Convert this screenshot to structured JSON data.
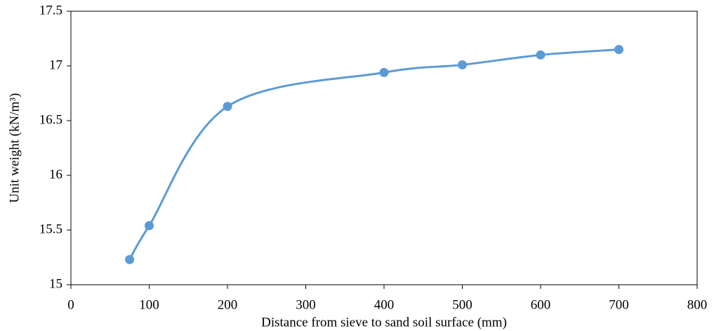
{
  "chart_data": {
    "type": "line",
    "x_label": "Distance from sieve to sand soil surface (mm)",
    "y_label": "Unit weight (kN/m³)",
    "x": [
      75,
      100,
      200,
      400,
      500,
      600,
      700
    ],
    "series": [
      {
        "color": "#5b9bd5",
        "values": [
          15.23,
          15.54,
          16.63,
          16.94,
          17.01,
          17.1,
          17.15
        ]
      }
    ],
    "xlim": [
      0,
      800
    ],
    "xticks": [
      0,
      100,
      200,
      300,
      400,
      500,
      600,
      700,
      800
    ],
    "ylim": [
      15,
      17.5
    ],
    "yticks": [
      15,
      15.5,
      16,
      16.5,
      17,
      17.5
    ],
    "smooth": true,
    "markers": true,
    "grid": false
  }
}
